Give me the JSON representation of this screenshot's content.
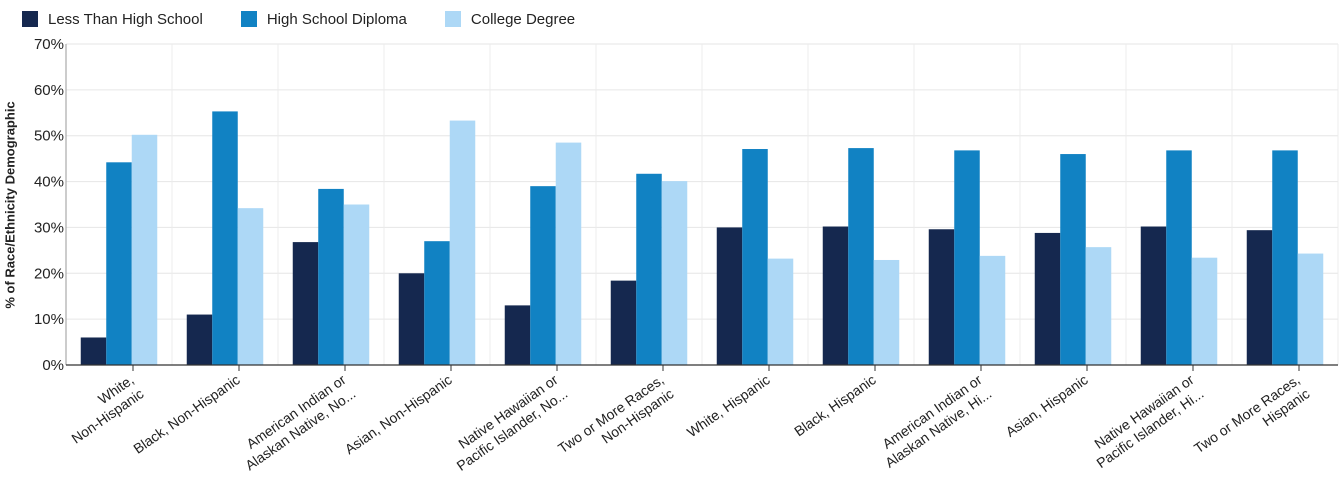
{
  "chart_data": {
    "type": "bar",
    "title": "",
    "xlabel": "",
    "ylabel": "% of Race/Ethnicity Demographic",
    "ylim": [
      0,
      70
    ],
    "yticks": [
      "0%",
      "10%",
      "20%",
      "30%",
      "40%",
      "50%",
      "60%",
      "70%"
    ],
    "grid": true,
    "legend_position": "top-left",
    "categories": [
      [
        "White,",
        "Non-Hispanic"
      ],
      [
        "Black, Non-Hispanic"
      ],
      [
        "American Indian or",
        "Alaskan Native, No..."
      ],
      [
        "Asian, Non-Hispanic"
      ],
      [
        "Native Hawaiian or",
        "Pacific Islander, No..."
      ],
      [
        "Two or More Races,",
        "Non-Hispanic"
      ],
      [
        "White, Hispanic"
      ],
      [
        "Black, Hispanic"
      ],
      [
        "American Indian or",
        "Alaskan Native, Hi..."
      ],
      [
        "Asian, Hispanic"
      ],
      [
        "Native Hawaiian or",
        "Pacific Islander, Hi..."
      ],
      [
        "Two or More Races,",
        "Hispanic"
      ]
    ],
    "series": [
      {
        "name": "Less Than High School",
        "color": "#15284f",
        "values": [
          6.0,
          11.0,
          26.8,
          20.0,
          13.0,
          18.4,
          30.0,
          30.2,
          29.6,
          28.8,
          30.2,
          29.4
        ]
      },
      {
        "name": "High School Diploma",
        "color": "#1182c3",
        "values": [
          44.2,
          55.3,
          38.4,
          27.0,
          39.0,
          41.7,
          47.1,
          47.3,
          46.8,
          46.0,
          46.8,
          46.8
        ]
      },
      {
        "name": "College Degree",
        "color": "#add8f6",
        "values": [
          50.2,
          34.2,
          35.0,
          53.3,
          48.5,
          40.1,
          23.2,
          22.9,
          23.8,
          25.7,
          23.4,
          24.3
        ]
      }
    ]
  }
}
